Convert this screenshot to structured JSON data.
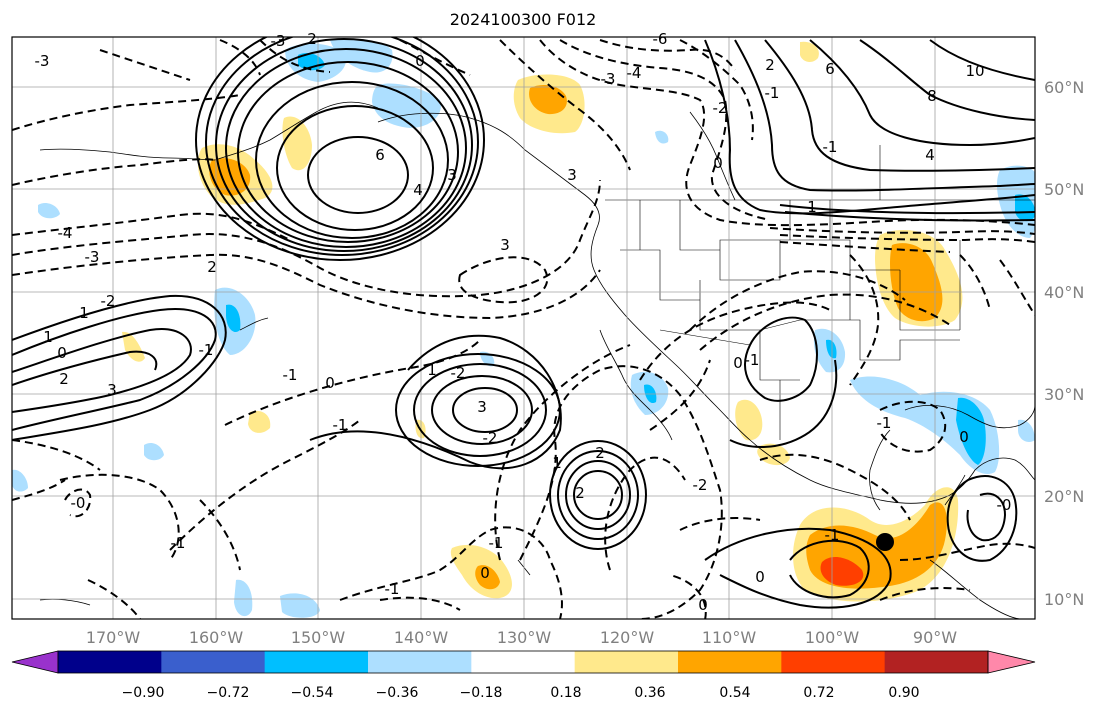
{
  "title": "2024100300 F012",
  "lat_labels": [
    "60°N",
    "50°N",
    "40°N",
    "30°N",
    "20°N",
    "10°N"
  ],
  "lon_labels": [
    "170°W",
    "160°W",
    "150°W",
    "140°W",
    "130°W",
    "120°W",
    "110°W",
    "100°W",
    "90°W"
  ],
  "colorbar": {
    "tick_labels": [
      "−0.90",
      "−0.72",
      "−0.54",
      "−0.36",
      "−0.18",
      "0.18",
      "0.36",
      "0.54",
      "0.72",
      "0.90"
    ],
    "colors": [
      "#9932CC",
      "#00008B",
      "#3A5FCD",
      "#00BFFF",
      "#ADDFFF",
      "#FFFFFF",
      "#FFE98C",
      "#FFA500",
      "#FF3F00",
      "#B22222",
      "#FF88AA"
    ]
  },
  "contour_labels": [
    "-3",
    "2",
    "-6",
    "-4",
    "-3",
    "0",
    "-3",
    "10",
    "6",
    "8",
    "-1",
    "-2",
    "2",
    "6",
    "4",
    "3",
    "0",
    "-1",
    "4",
    "3",
    "-4",
    "-3",
    "-2",
    "2",
    "3",
    "1",
    "-1",
    "1",
    "0",
    "2",
    "3",
    "-1",
    "0",
    "1",
    "-2",
    "3",
    "-2",
    "-1",
    "2",
    "2",
    "1",
    "-2",
    "0",
    "-1",
    "-0",
    "-1",
    "-1",
    "-1",
    "0",
    "0",
    "-0",
    "1",
    "0",
    "-1",
    "-1",
    "0"
  ],
  "marker": "storm-center-dot"
}
